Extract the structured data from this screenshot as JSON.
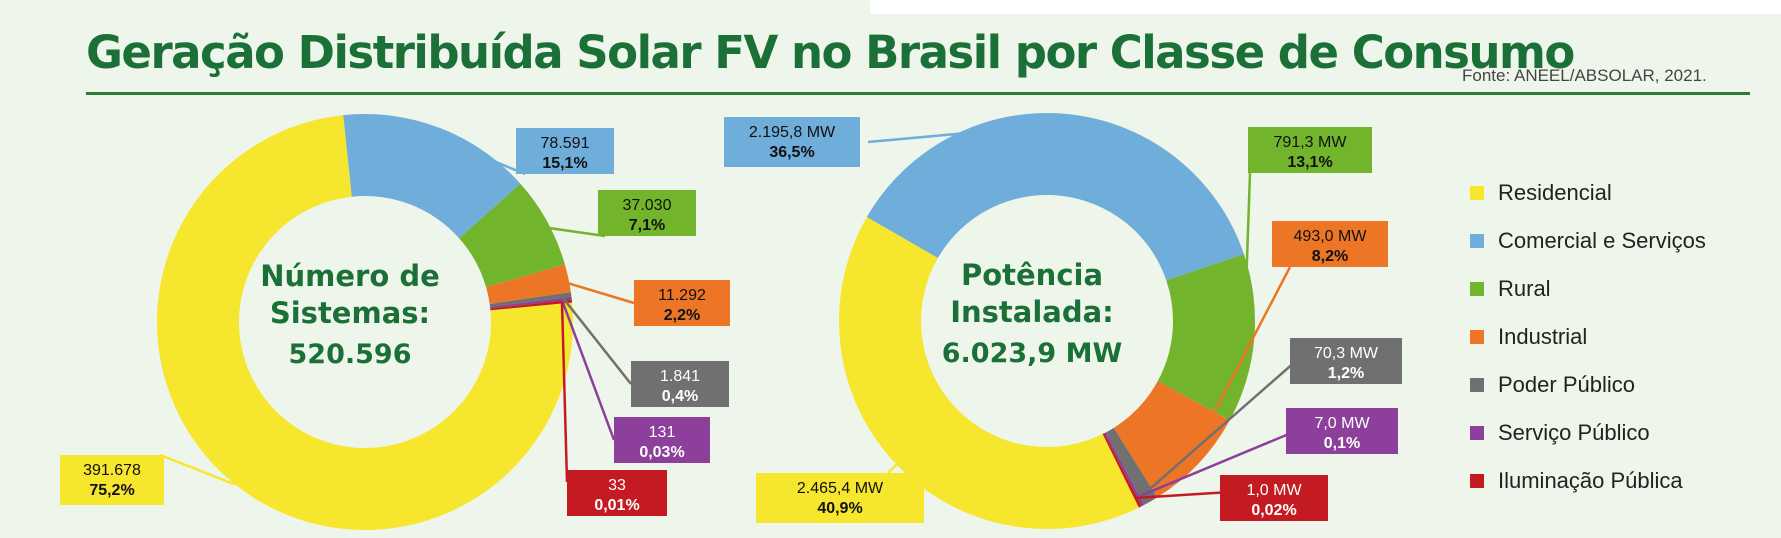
{
  "header": {
    "title": "Geração Distribuída Solar FV no Brasil por Classe de Consumo",
    "source": "Fonte: ANEEL/ABSOLAR, 2021."
  },
  "legend": [
    {
      "label": "Residencial",
      "color": "#f7e62e"
    },
    {
      "label": "Comercial e Serviços",
      "color": "#6fadda"
    },
    {
      "label": "Rural",
      "color": "#72b52c"
    },
    {
      "label": "Industrial",
      "color": "#ec7625"
    },
    {
      "label": "Poder Público",
      "color": "#707070"
    },
    {
      "label": "Serviço Público",
      "color": "#8c3f9b"
    },
    {
      "label": "Iluminação Pública",
      "color": "#c41a22"
    }
  ],
  "chart_data": [
    {
      "type": "pie",
      "center_label": [
        "Número de",
        "Sistemas:",
        "520.596"
      ],
      "categories": [
        "Residencial",
        "Comercial e Serviços",
        "Rural",
        "Industrial",
        "Poder Público",
        "Serviço Público",
        "Iluminação Pública"
      ],
      "values": [
        391678,
        78591,
        37030,
        11292,
        1841,
        131,
        33
      ],
      "labels": [
        {
          "value": "391.678",
          "pct": "75,2%"
        },
        {
          "value": "78.591",
          "pct": "15,1%"
        },
        {
          "value": "37.030",
          "pct": "7,1%"
        },
        {
          "value": "11.292",
          "pct": "2,2%"
        },
        {
          "value": "1.841",
          "pct": "0,4%"
        },
        {
          "value": "131",
          "pct": "0,03%"
        },
        {
          "value": "33",
          "pct": "0,01%"
        }
      ]
    },
    {
      "type": "pie",
      "center_label": [
        "Potência",
        "Instalada:",
        "6.023,9 MW"
      ],
      "categories": [
        "Residencial",
        "Comercial e Serviços",
        "Rural",
        "Industrial",
        "Poder Público",
        "Serviço Público",
        "Iluminação Pública"
      ],
      "values": [
        2465.4,
        2195.8,
        791.3,
        493.0,
        70.3,
        7.0,
        1.0
      ],
      "labels": [
        {
          "value": "2.465,4 MW",
          "pct": "40,9%"
        },
        {
          "value": "2.195,8 MW",
          "pct": "36,5%"
        },
        {
          "value": "791,3 MW",
          "pct": "13,1%"
        },
        {
          "value": "493,0 MW",
          "pct": "8,2%"
        },
        {
          "value": "70,3 MW",
          "pct": "1,2%"
        },
        {
          "value": "7,0 MW",
          "pct": "0,1%"
        },
        {
          "value": "1,0 MW",
          "pct": "0,02%"
        }
      ]
    }
  ]
}
